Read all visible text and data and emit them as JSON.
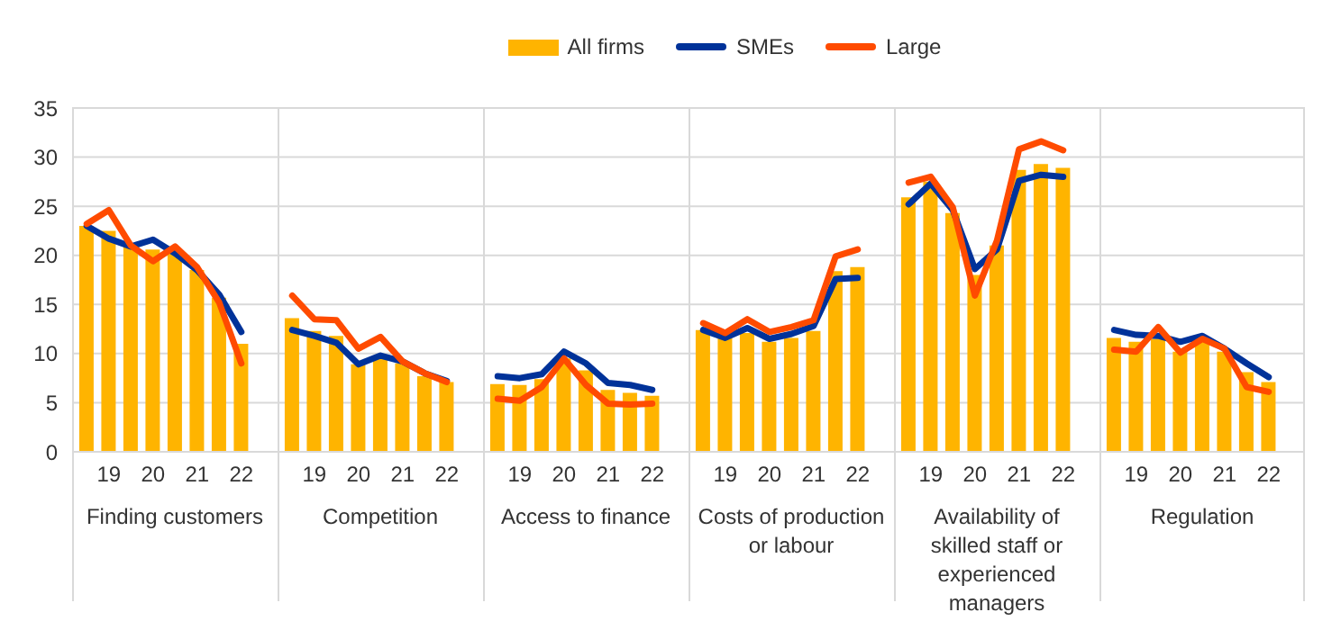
{
  "chart_data": [
    {
      "type": "bar",
      "xlabel": "Finding customers",
      "categories": [
        null,
        "19",
        null,
        "20",
        null,
        "21",
        null,
        "22"
      ],
      "ylim": [
        0,
        35
      ],
      "yticks": [
        0,
        5,
        10,
        15,
        20,
        25,
        30,
        35
      ],
      "grid": "y",
      "legend": "top",
      "tick_labels": "xy",
      "series": [
        {
          "name": "All firms",
          "color": "#ffb400",
          "values": [
            23.0,
            22.5,
            21.0,
            20.6,
            20.5,
            18.5,
            15.7,
            11.0
          ]
        },
        {
          "name": "SMEs",
          "type": "line",
          "color": "#003299",
          "values": [
            23.0,
            21.7,
            20.9,
            21.6,
            20.2,
            18.5,
            16.0,
            12.2
          ]
        },
        {
          "name": "Large",
          "type": "line",
          "color": "#ff4b00",
          "values": [
            23.2,
            24.6,
            21.0,
            19.4,
            20.9,
            18.8,
            15.2,
            9.0
          ]
        }
      ]
    },
    {
      "type": "bar",
      "xlabel": "Competition",
      "categories": [
        null,
        "19",
        null,
        "20",
        null,
        "21",
        null,
        "22"
      ],
      "ylim": [
        0,
        35
      ],
      "yticks": [
        0,
        5,
        10,
        15,
        20,
        25,
        30,
        35
      ],
      "grid": "y",
      "tick_labels": "x",
      "series": [
        {
          "color": "#ffb400",
          "values": [
            13.6,
            12.3,
            11.8,
            8.9,
            9.7,
            9.0,
            7.7,
            7.1
          ]
        },
        {
          "type": "line",
          "color": "#003299",
          "values": [
            12.4,
            11.8,
            11.1,
            8.9,
            9.8,
            9.2,
            8.0,
            7.2
          ]
        },
        {
          "type": "line",
          "color": "#ff4b00",
          "values": [
            15.9,
            13.5,
            13.4,
            10.5,
            11.7,
            9.2,
            8.0,
            7.1
          ]
        }
      ]
    },
    {
      "type": "bar",
      "xlabel": "Access to finance",
      "categories": [
        null,
        "19",
        null,
        "20",
        null,
        "21",
        null,
        "22"
      ],
      "ylim": [
        0,
        35
      ],
      "yticks": [
        0,
        5,
        10,
        15,
        20,
        25,
        30,
        35
      ],
      "grid": "y",
      "tick_labels": "x",
      "series": [
        {
          "color": "#ffb400",
          "values": [
            6.9,
            6.8,
            7.4,
            9.5,
            8.3,
            6.3,
            6.0,
            5.7
          ]
        },
        {
          "type": "line",
          "color": "#003299",
          "values": [
            7.7,
            7.5,
            7.9,
            10.2,
            9.0,
            7.0,
            6.8,
            6.3
          ]
        },
        {
          "type": "line",
          "color": "#ff4b00",
          "values": [
            5.4,
            5.2,
            6.6,
            9.5,
            6.8,
            4.9,
            4.8,
            4.9
          ]
        }
      ]
    },
    {
      "type": "bar",
      "xlabel": "Costs of production or labour",
      "categories": [
        null,
        "19",
        null,
        "20",
        null,
        "21",
        null,
        "22"
      ],
      "ylim": [
        0,
        35
      ],
      "yticks": [
        0,
        5,
        10,
        15,
        20,
        25,
        30,
        35
      ],
      "grid": "y",
      "tick_labels": "x",
      "series": [
        {
          "color": "#ffb400",
          "values": [
            12.4,
            11.6,
            12.1,
            11.2,
            11.6,
            12.3,
            18.4,
            18.8
          ]
        },
        {
          "type": "line",
          "color": "#003299",
          "values": [
            12.4,
            11.6,
            12.6,
            11.5,
            12.0,
            12.8,
            17.6,
            17.7
          ]
        },
        {
          "type": "line",
          "color": "#ff4b00",
          "values": [
            13.1,
            12.1,
            13.5,
            12.2,
            12.7,
            13.4,
            19.9,
            20.6
          ]
        }
      ]
    },
    {
      "type": "bar",
      "xlabel": "Availability of skilled staff or experienced managers",
      "categories": [
        null,
        "19",
        null,
        "20",
        null,
        "21",
        null,
        "22"
      ],
      "ylim": [
        0,
        35
      ],
      "yticks": [
        0,
        5,
        10,
        15,
        20,
        25,
        30,
        35
      ],
      "grid": "y",
      "tick_labels": "x",
      "series": [
        {
          "color": "#ffb400",
          "values": [
            25.9,
            27.5,
            24.3,
            18.0,
            21.0,
            28.7,
            29.3,
            28.9
          ]
        },
        {
          "type": "line",
          "color": "#003299",
          "values": [
            25.2,
            27.3,
            24.6,
            18.6,
            20.6,
            27.6,
            28.2,
            28.0
          ]
        },
        {
          "type": "line",
          "color": "#ff4b00",
          "values": [
            27.4,
            28.0,
            24.9,
            15.9,
            21.5,
            30.8,
            31.6,
            30.7
          ]
        }
      ]
    },
    {
      "type": "bar",
      "xlabel": "Regulation",
      "categories": [
        null,
        "19",
        null,
        "20",
        null,
        "21",
        null,
        "22"
      ],
      "ylim": [
        0,
        35
      ],
      "yticks": [
        0,
        5,
        10,
        15,
        20,
        25,
        30,
        35
      ],
      "grid": "y",
      "tick_labels": "x",
      "series": [
        {
          "color": "#ffb400",
          "values": [
            11.6,
            11.2,
            11.5,
            10.2,
            11.5,
            10.2,
            8.1,
            7.1
          ]
        },
        {
          "type": "line",
          "color": "#003299",
          "values": [
            12.4,
            11.9,
            11.8,
            11.2,
            11.8,
            10.5,
            9.0,
            7.6
          ]
        },
        {
          "type": "line",
          "color": "#ff4b00",
          "values": [
            10.4,
            10.2,
            12.7,
            10.1,
            11.5,
            10.5,
            6.6,
            6.1
          ]
        }
      ]
    }
  ]
}
